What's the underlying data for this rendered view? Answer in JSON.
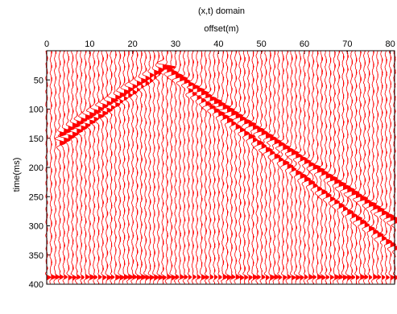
{
  "chart_data": {
    "type": "seismic-wiggle",
    "title": "(x,t) domain",
    "xlabel": "offset(m)",
    "ylabel": "time(ms)",
    "xlim": [
      0,
      81
    ],
    "ylim": [
      0,
      400
    ],
    "y_reversed": true,
    "x_axis_position": "top",
    "xticks": [
      0,
      10,
      20,
      30,
      40,
      50,
      60,
      70,
      80
    ],
    "yticks": [
      50,
      100,
      150,
      200,
      250,
      300,
      350,
      400
    ],
    "trace_color": "#ff0000",
    "trace_fill_color": "#ff0000",
    "trace_spacing": 1,
    "trace_count": 82,
    "amplitude_scale": 1.6,
    "events": [
      {
        "name": "left-limb",
        "x": [
          3,
          27
        ],
        "t": [
          143,
          28
        ]
      },
      {
        "name": "right-limb",
        "x": [
          27,
          81
        ],
        "t": [
          28,
          292
        ]
      },
      {
        "name": "left-limb-2",
        "x": [
          3,
          26
        ],
        "t": [
          158,
          40
        ]
      },
      {
        "name": "right-limb-2",
        "x": [
          33,
          81
        ],
        "t": [
          68,
          338
        ]
      },
      {
        "name": "bottom-noise",
        "x": [
          0,
          81
        ],
        "t": [
          388,
          388
        ]
      }
    ]
  }
}
